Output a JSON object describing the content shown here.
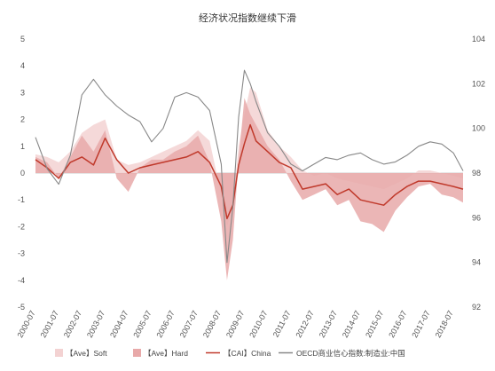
{
  "chart_data": {
    "type": "line",
    "title": "经济状况指数继续下滑",
    "x_start": "2000-07",
    "x_end": "2018-12",
    "x_ticks": [
      "2000-07",
      "2001-07",
      "2002-07",
      "2003-07",
      "2004-07",
      "2005-07",
      "2006-07",
      "2007-07",
      "2008-07",
      "2009-07",
      "2010-07",
      "2011-07",
      "2012-07",
      "2013-07",
      "2014-07",
      "2015-07",
      "2016-07",
      "2017-07",
      "2018-07"
    ],
    "y_left": {
      "ticks": [
        5,
        4,
        3,
        2,
        1,
        0,
        -1,
        -2,
        -3,
        -4,
        -5
      ],
      "range": [
        -5,
        5
      ]
    },
    "y_right": {
      "ticks": [
        104,
        102,
        100,
        98,
        96,
        94,
        92
      ],
      "range": [
        92,
        104
      ]
    },
    "series": [
      {
        "name": "【Ave】Soft",
        "kind": "area",
        "axis": "left",
        "color": "#f3d2d2",
        "points": [
          [
            "2000-07",
            0.7
          ],
          [
            "2001-01",
            0.6
          ],
          [
            "2001-07",
            0.4
          ],
          [
            "2002-01",
            0.8
          ],
          [
            "2002-07",
            1.5
          ],
          [
            "2003-01",
            1.8
          ],
          [
            "2003-07",
            2.0
          ],
          [
            "2004-01",
            0.5
          ],
          [
            "2004-07",
            0.3
          ],
          [
            "2005-01",
            0.4
          ],
          [
            "2005-07",
            0.6
          ],
          [
            "2006-01",
            0.8
          ],
          [
            "2006-07",
            1.0
          ],
          [
            "2007-01",
            1.2
          ],
          [
            "2007-07",
            1.6
          ],
          [
            "2008-01",
            1.2
          ],
          [
            "2008-07",
            -0.8
          ],
          [
            "2008-10",
            -2.0
          ],
          [
            "2009-01",
            -1.2
          ],
          [
            "2009-04",
            1.0
          ],
          [
            "2009-07",
            2.2
          ],
          [
            "2009-10",
            3.2
          ],
          [
            "2010-01",
            3.0
          ],
          [
            "2010-07",
            1.6
          ],
          [
            "2011-01",
            1.0
          ],
          [
            "2011-07",
            0.6
          ],
          [
            "2012-01",
            0.1
          ],
          [
            "2012-07",
            -0.1
          ],
          [
            "2013-01",
            0.0
          ],
          [
            "2013-07",
            -0.2
          ],
          [
            "2014-01",
            -0.3
          ],
          [
            "2014-07",
            -0.4
          ],
          [
            "2015-01",
            -0.5
          ],
          [
            "2015-07",
            -0.6
          ],
          [
            "2016-01",
            -0.4
          ],
          [
            "2016-07",
            -0.2
          ],
          [
            "2017-01",
            0.1
          ],
          [
            "2017-07",
            0.1
          ],
          [
            "2018-01",
            0.0
          ],
          [
            "2018-07",
            -0.1
          ],
          [
            "2018-12",
            -0.2
          ]
        ]
      },
      {
        "name": "【Ave】Hard",
        "kind": "area",
        "axis": "left",
        "color": "#e8a9a9",
        "points": [
          [
            "2000-07",
            0.6
          ],
          [
            "2001-01",
            0.4
          ],
          [
            "2001-07",
            -0.2
          ],
          [
            "2002-01",
            0.6
          ],
          [
            "2002-07",
            1.4
          ],
          [
            "2003-01",
            0.8
          ],
          [
            "2003-07",
            1.6
          ],
          [
            "2004-01",
            -0.2
          ],
          [
            "2004-07",
            -0.7
          ],
          [
            "2005-01",
            0.2
          ],
          [
            "2005-07",
            0.5
          ],
          [
            "2006-01",
            0.5
          ],
          [
            "2006-07",
            0.8
          ],
          [
            "2007-01",
            1.0
          ],
          [
            "2007-07",
            1.4
          ],
          [
            "2008-01",
            0.4
          ],
          [
            "2008-07",
            -1.8
          ],
          [
            "2008-10",
            -4.0
          ],
          [
            "2009-01",
            -2.5
          ],
          [
            "2009-04",
            0.5
          ],
          [
            "2009-07",
            2.8
          ],
          [
            "2009-10",
            2.2
          ],
          [
            "2010-01",
            1.8
          ],
          [
            "2010-07",
            1.0
          ],
          [
            "2011-01",
            0.5
          ],
          [
            "2011-07",
            -0.3
          ],
          [
            "2012-01",
            -1.0
          ],
          [
            "2012-07",
            -0.8
          ],
          [
            "2013-01",
            -0.6
          ],
          [
            "2013-07",
            -1.2
          ],
          [
            "2014-01",
            -1.0
          ],
          [
            "2014-07",
            -1.8
          ],
          [
            "2015-01",
            -1.9
          ],
          [
            "2015-07",
            -2.2
          ],
          [
            "2016-01",
            -1.4
          ],
          [
            "2016-07",
            -0.9
          ],
          [
            "2017-01",
            -0.5
          ],
          [
            "2017-07",
            -0.4
          ],
          [
            "2018-01",
            -0.8
          ],
          [
            "2018-07",
            -0.9
          ],
          [
            "2018-12",
            -1.1
          ]
        ]
      },
      {
        "name": "【CAI】China",
        "kind": "line",
        "axis": "left",
        "color": "#c0392b",
        "points": [
          [
            "2000-07",
            0.5
          ],
          [
            "2001-01",
            0.2
          ],
          [
            "2001-07",
            -0.2
          ],
          [
            "2002-01",
            0.4
          ],
          [
            "2002-07",
            0.6
          ],
          [
            "2003-01",
            0.3
          ],
          [
            "2003-07",
            1.3
          ],
          [
            "2004-01",
            0.5
          ],
          [
            "2004-07",
            0.0
          ],
          [
            "2005-01",
            0.2
          ],
          [
            "2005-07",
            0.3
          ],
          [
            "2006-01",
            0.4
          ],
          [
            "2006-07",
            0.5
          ],
          [
            "2007-01",
            0.6
          ],
          [
            "2007-07",
            0.8
          ],
          [
            "2008-01",
            0.4
          ],
          [
            "2008-07",
            -0.5
          ],
          [
            "2008-10",
            -1.7
          ],
          [
            "2009-01",
            -1.2
          ],
          [
            "2009-04",
            0.3
          ],
          [
            "2009-07",
            1.1
          ],
          [
            "2009-10",
            1.8
          ],
          [
            "2010-01",
            1.2
          ],
          [
            "2010-07",
            0.8
          ],
          [
            "2011-01",
            0.4
          ],
          [
            "2011-07",
            0.2
          ],
          [
            "2012-01",
            -0.6
          ],
          [
            "2012-07",
            -0.5
          ],
          [
            "2013-01",
            -0.4
          ],
          [
            "2013-07",
            -0.8
          ],
          [
            "2014-01",
            -0.6
          ],
          [
            "2014-07",
            -1.0
          ],
          [
            "2015-01",
            -1.1
          ],
          [
            "2015-07",
            -1.2
          ],
          [
            "2016-01",
            -0.8
          ],
          [
            "2016-07",
            -0.5
          ],
          [
            "2017-01",
            -0.3
          ],
          [
            "2017-07",
            -0.3
          ],
          [
            "2018-01",
            -0.4
          ],
          [
            "2018-07",
            -0.5
          ],
          [
            "2018-12",
            -0.6
          ]
        ]
      },
      {
        "name": "OECD商业信心指数:制造业:中国",
        "kind": "line",
        "axis": "right",
        "color": "#888888",
        "points": [
          [
            "2000-07",
            99.6
          ],
          [
            "2001-01",
            98.2
          ],
          [
            "2001-07",
            97.5
          ],
          [
            "2002-01",
            98.8
          ],
          [
            "2002-07",
            101.5
          ],
          [
            "2003-01",
            102.2
          ],
          [
            "2003-07",
            101.5
          ],
          [
            "2004-01",
            101.0
          ],
          [
            "2004-07",
            100.6
          ],
          [
            "2005-01",
            100.3
          ],
          [
            "2005-07",
            99.4
          ],
          [
            "2006-01",
            100.0
          ],
          [
            "2006-07",
            101.4
          ],
          [
            "2007-01",
            101.6
          ],
          [
            "2007-07",
            101.4
          ],
          [
            "2008-01",
            100.8
          ],
          [
            "2008-07",
            98.4
          ],
          [
            "2008-10",
            94.0
          ],
          [
            "2009-01",
            96.5
          ],
          [
            "2009-04",
            100.5
          ],
          [
            "2009-07",
            102.6
          ],
          [
            "2009-10",
            102.0
          ],
          [
            "2010-01",
            101.2
          ],
          [
            "2010-07",
            99.8
          ],
          [
            "2011-01",
            99.2
          ],
          [
            "2011-07",
            98.4
          ],
          [
            "2012-01",
            98.1
          ],
          [
            "2012-07",
            98.4
          ],
          [
            "2013-01",
            98.7
          ],
          [
            "2013-07",
            98.6
          ],
          [
            "2014-01",
            98.8
          ],
          [
            "2014-07",
            98.9
          ],
          [
            "2015-01",
            98.6
          ],
          [
            "2015-07",
            98.4
          ],
          [
            "2016-01",
            98.5
          ],
          [
            "2016-07",
            98.8
          ],
          [
            "2017-01",
            99.2
          ],
          [
            "2017-07",
            99.4
          ],
          [
            "2018-01",
            99.3
          ],
          [
            "2018-07",
            98.9
          ],
          [
            "2018-12",
            98.1
          ]
        ]
      }
    ],
    "legend": [
      {
        "label": "【Ave】Soft",
        "kind": "box",
        "color": "#f3d2d2"
      },
      {
        "label": "【Ave】Hard",
        "kind": "box",
        "color": "#e8a9a9"
      },
      {
        "label": "【CAI】China",
        "kind": "line",
        "color": "#c0392b"
      },
      {
        "label": "OECD商业信心指数:制造业:中国",
        "kind": "line",
        "color": "#888888"
      }
    ]
  }
}
